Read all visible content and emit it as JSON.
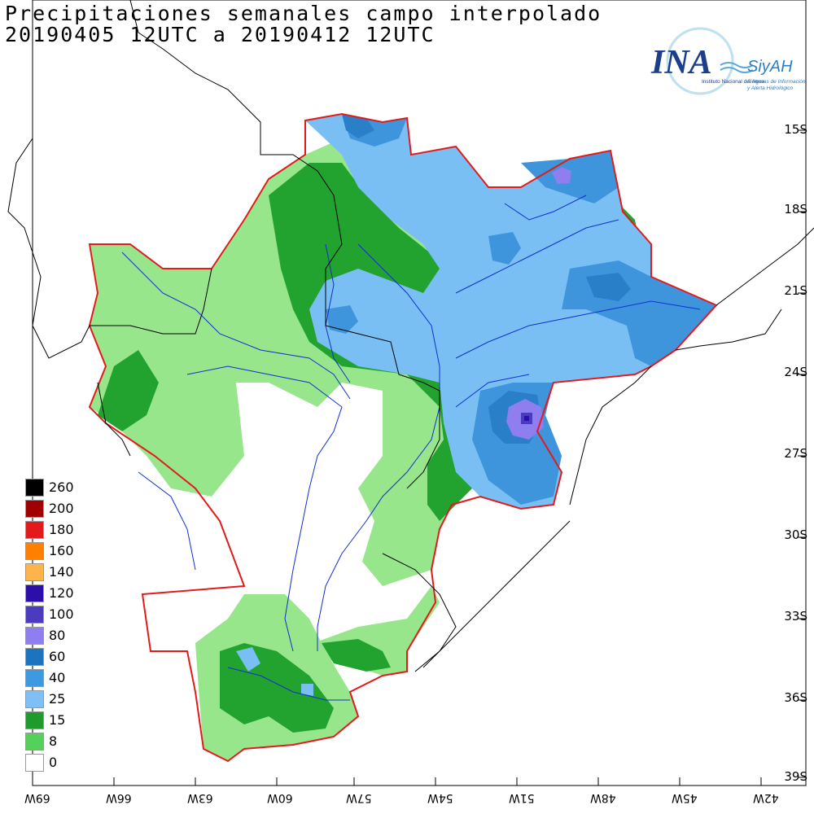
{
  "title": {
    "line1": "Precipitaciones semanales campo interpolado",
    "line2": "20190405 12UTC a 20190412 12UTC"
  },
  "logo": {
    "brand": "INA",
    "system": "SiyAH",
    "org": "Instituto Nacional del Agua",
    "tagline1": "Sistemas de Información",
    "tagline2": "y Alerta Hidrológico"
  },
  "lat_labels": [
    "15S",
    "18S",
    "21S",
    "24S",
    "27S",
    "30S",
    "33S",
    "36S",
    "39S"
  ],
  "lon_labels": [
    "69W",
    "66W",
    "63W",
    "60W",
    "57W",
    "54W",
    "51W",
    "48W",
    "45W",
    "42W"
  ],
  "legend": [
    {
      "label": "260",
      "color": "#000000"
    },
    {
      "label": "200",
      "color": "#a00000"
    },
    {
      "label": "180",
      "color": "#e31a1c"
    },
    {
      "label": "160",
      "color": "#ff7f00"
    },
    {
      "label": "140",
      "color": "#fdb44b"
    },
    {
      "label": "120",
      "color": "#2c0fa8"
    },
    {
      "label": "100",
      "color": "#4b3bbf"
    },
    {
      "label": "80",
      "color": "#8e7ef0"
    },
    {
      "label": "60",
      "color": "#1c74c0"
    },
    {
      "label": "40",
      "color": "#3c9ae0"
    },
    {
      "label": "25",
      "color": "#7ec0f5"
    },
    {
      "label": "15",
      "color": "#1f9a2c"
    },
    {
      "label": "8",
      "color": "#55d05a"
    },
    {
      "label": "0",
      "color": "#ffffff"
    }
  ],
  "colors": {
    "basin_outline": "#e31a1c",
    "rivers": "#1030d0",
    "borders": "#000000",
    "class_0": "#ffffff",
    "class_8": "#98e68c",
    "class_15": "#22a22e",
    "class_25": "#79bff3",
    "class_40": "#3e95dc",
    "class_60": "#2a7fc9",
    "class_80": "#8e7ef0",
    "class_100": "#4b3bbf"
  }
}
